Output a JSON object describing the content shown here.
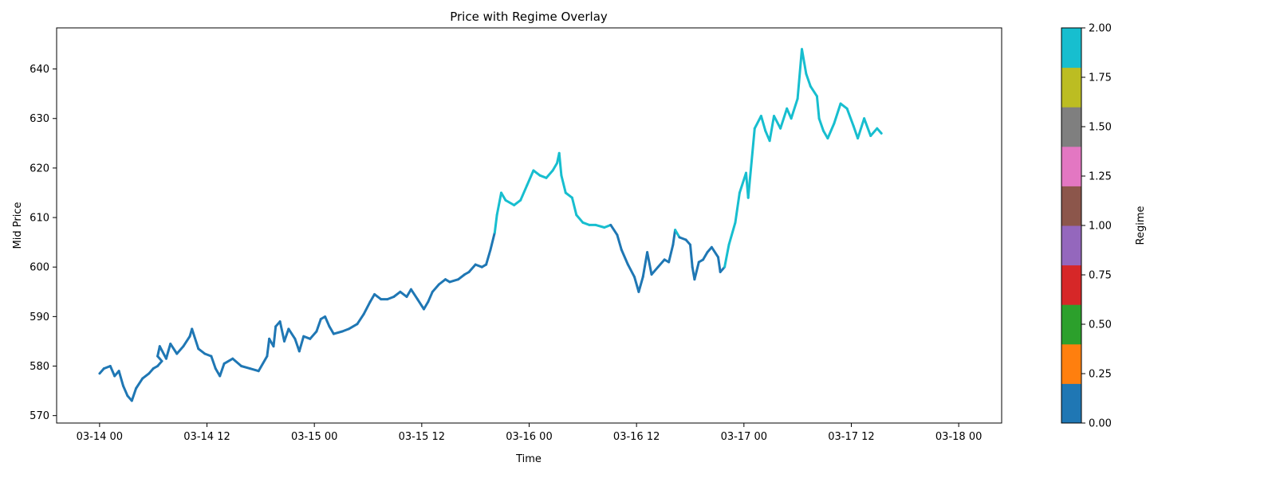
{
  "chart_data": {
    "type": "line",
    "title": "Price with Regime Overlay",
    "xlabel": "Time",
    "ylabel": "Mid Price",
    "ylim": [
      568.5,
      648.3
    ],
    "xlim_days": [
      -0.2,
      4.2
    ],
    "yticks": [
      570,
      580,
      590,
      600,
      610,
      620,
      630,
      640
    ],
    "xticks": [
      {
        "value": 0.0,
        "label": "03-14 00"
      },
      {
        "value": 0.5,
        "label": "03-14 12"
      },
      {
        "value": 1.0,
        "label": "03-15 00"
      },
      {
        "value": 1.5,
        "label": "03-15 12"
      },
      {
        "value": 2.0,
        "label": "03-16 00"
      },
      {
        "value": 2.5,
        "label": "03-16 12"
      },
      {
        "value": 3.0,
        "label": "03-17 00"
      },
      {
        "value": 3.5,
        "label": "03-17 12"
      },
      {
        "value": 4.0,
        "label": "03-18 00"
      }
    ],
    "series": [
      {
        "name": "Mid Price",
        "x_unit": "days since 03-14 00",
        "points": [
          [
            0.0,
            578.5,
            0
          ],
          [
            0.02,
            579.5,
            0
          ],
          [
            0.05,
            580.0,
            0
          ],
          [
            0.07,
            578.0,
            0
          ],
          [
            0.09,
            579.0,
            0
          ],
          [
            0.11,
            576.0,
            0
          ],
          [
            0.13,
            574.0,
            0
          ],
          [
            0.15,
            573.0,
            0
          ],
          [
            0.17,
            575.5,
            0
          ],
          [
            0.2,
            577.5,
            0
          ],
          [
            0.23,
            578.5,
            0
          ],
          [
            0.25,
            579.5,
            0
          ],
          [
            0.27,
            580.0,
            0
          ],
          [
            0.29,
            581.0,
            0
          ],
          [
            0.27,
            582.0,
            0
          ],
          [
            0.28,
            584.0,
            0
          ],
          [
            0.31,
            581.5,
            0
          ],
          [
            0.32,
            583.0,
            0
          ],
          [
            0.33,
            584.5,
            0
          ],
          [
            0.36,
            582.5,
            0
          ],
          [
            0.39,
            584.0,
            0
          ],
          [
            0.42,
            586.0,
            0
          ],
          [
            0.43,
            587.5,
            0
          ],
          [
            0.46,
            583.5,
            0
          ],
          [
            0.49,
            582.5,
            0
          ],
          [
            0.52,
            582.0,
            0
          ],
          [
            0.54,
            579.5,
            0
          ],
          [
            0.56,
            578.0,
            0
          ],
          [
            0.58,
            580.5,
            0
          ],
          [
            0.62,
            581.5,
            0
          ],
          [
            0.66,
            580.0,
            0
          ],
          [
            0.7,
            579.5,
            0
          ],
          [
            0.74,
            579.0,
            0
          ],
          [
            0.78,
            582.0,
            0
          ],
          [
            0.79,
            585.5,
            0
          ],
          [
            0.81,
            584.0,
            0
          ],
          [
            0.82,
            588.0,
            0
          ],
          [
            0.84,
            589.0,
            0
          ],
          [
            0.86,
            585.0,
            0
          ],
          [
            0.88,
            587.5,
            0
          ],
          [
            0.91,
            585.5,
            0
          ],
          [
            0.93,
            583.0,
            0
          ],
          [
            0.95,
            586.0,
            0
          ],
          [
            0.98,
            585.5,
            0
          ],
          [
            1.01,
            587.0,
            0
          ],
          [
            1.03,
            589.5,
            0
          ],
          [
            1.05,
            590.0,
            0
          ],
          [
            1.07,
            588.0,
            0
          ],
          [
            1.09,
            586.5,
            0
          ],
          [
            1.13,
            587.0,
            0
          ],
          [
            1.16,
            587.5,
            0
          ],
          [
            1.2,
            588.5,
            0
          ],
          [
            1.23,
            590.5,
            0
          ],
          [
            1.26,
            593.0,
            0
          ],
          [
            1.28,
            594.5,
            0
          ],
          [
            1.31,
            593.5,
            0
          ],
          [
            1.34,
            593.5,
            0
          ],
          [
            1.37,
            594.0,
            0
          ],
          [
            1.4,
            595.0,
            0
          ],
          [
            1.43,
            594.0,
            0
          ],
          [
            1.45,
            595.5,
            0
          ],
          [
            1.48,
            593.5,
            0
          ],
          [
            1.51,
            591.5,
            0
          ],
          [
            1.53,
            593.0,
            0
          ],
          [
            1.55,
            595.0,
            0
          ],
          [
            1.58,
            596.5,
            0
          ],
          [
            1.61,
            597.5,
            0
          ],
          [
            1.63,
            597.0,
            0
          ],
          [
            1.67,
            597.5,
            0
          ],
          [
            1.7,
            598.5,
            0
          ],
          [
            1.72,
            599.0,
            0
          ],
          [
            1.75,
            600.5,
            0
          ],
          [
            1.78,
            600.0,
            0
          ],
          [
            1.8,
            600.5,
            0
          ],
          [
            1.82,
            603.5,
            0
          ],
          [
            1.84,
            607.0,
            2
          ],
          [
            1.85,
            610.5,
            2
          ],
          [
            1.87,
            615.0,
            2
          ],
          [
            1.89,
            613.5,
            2
          ],
          [
            1.93,
            612.5,
            2
          ],
          [
            1.96,
            613.5,
            2
          ],
          [
            1.99,
            616.5,
            2
          ],
          [
            2.02,
            619.5,
            2
          ],
          [
            2.05,
            618.5,
            2
          ],
          [
            2.08,
            618.0,
            2
          ],
          [
            2.11,
            619.5,
            2
          ],
          [
            2.13,
            621.0,
            2
          ],
          [
            2.14,
            623.0,
            2
          ],
          [
            2.15,
            618.5,
            2
          ],
          [
            2.17,
            615.0,
            2
          ],
          [
            2.2,
            614.0,
            2
          ],
          [
            2.22,
            610.5,
            2
          ],
          [
            2.25,
            609.0,
            2
          ],
          [
            2.28,
            608.5,
            2
          ],
          [
            2.31,
            608.5,
            2
          ],
          [
            2.35,
            608.0,
            2
          ],
          [
            2.38,
            608.5,
            0
          ],
          [
            2.41,
            606.5,
            0
          ],
          [
            2.43,
            603.5,
            0
          ],
          [
            2.46,
            600.5,
            0
          ],
          [
            2.49,
            598.0,
            0
          ],
          [
            2.51,
            595.0,
            0
          ],
          [
            2.53,
            598.0,
            0
          ],
          [
            2.55,
            603.0,
            0
          ],
          [
            2.57,
            598.5,
            0
          ],
          [
            2.6,
            600.0,
            0
          ],
          [
            2.63,
            601.5,
            0
          ],
          [
            2.65,
            601.0,
            0
          ],
          [
            2.67,
            604.5,
            0
          ],
          [
            2.68,
            607.5,
            2
          ],
          [
            2.7,
            606.0,
            0
          ],
          [
            2.73,
            605.5,
            0
          ],
          [
            2.75,
            604.5,
            0
          ],
          [
            2.76,
            600.0,
            0
          ],
          [
            2.77,
            597.5,
            0
          ],
          [
            2.79,
            601.0,
            0
          ],
          [
            2.81,
            601.5,
            0
          ],
          [
            2.83,
            603.0,
            0
          ],
          [
            2.85,
            604.0,
            0
          ],
          [
            2.88,
            602.0,
            0
          ],
          [
            2.89,
            599.0,
            0
          ],
          [
            2.91,
            600.0,
            2
          ],
          [
            2.93,
            604.5,
            2
          ],
          [
            2.96,
            609.0,
            2
          ],
          [
            2.98,
            615.0,
            2
          ],
          [
            3.01,
            619.0,
            2
          ],
          [
            3.02,
            614.0,
            2
          ],
          [
            3.05,
            628.0,
            2
          ],
          [
            3.08,
            630.5,
            2
          ],
          [
            3.1,
            627.5,
            2
          ],
          [
            3.12,
            625.5,
            2
          ],
          [
            3.14,
            630.5,
            2
          ],
          [
            3.17,
            628.0,
            2
          ],
          [
            3.2,
            632.0,
            2
          ],
          [
            3.22,
            630.0,
            2
          ],
          [
            3.25,
            634.0,
            2
          ],
          [
            3.27,
            644.0,
            2
          ],
          [
            3.29,
            639.0,
            2
          ],
          [
            3.31,
            636.5,
            2
          ],
          [
            3.34,
            634.5,
            2
          ],
          [
            3.35,
            630.0,
            2
          ],
          [
            3.37,
            627.5,
            2
          ],
          [
            3.39,
            626.0,
            2
          ],
          [
            3.42,
            629.0,
            2
          ],
          [
            3.45,
            633.0,
            2
          ],
          [
            3.48,
            632.0,
            2
          ],
          [
            3.51,
            628.5,
            2
          ],
          [
            3.53,
            626.0,
            2
          ],
          [
            3.56,
            630.0,
            2
          ],
          [
            3.59,
            626.5,
            2
          ],
          [
            3.62,
            628.0,
            2
          ],
          [
            3.64,
            627.0,
            2
          ]
        ]
      }
    ],
    "colorbar": {
      "label": "Regime",
      "range": [
        0.0,
        2.0
      ],
      "ticks": [
        "0.00",
        "0.25",
        "0.50",
        "0.75",
        "1.00",
        "1.25",
        "1.50",
        "1.75",
        "2.00"
      ],
      "colors": [
        "#1f77b4",
        "#ff7f0e",
        "#2ca02c",
        "#d62728",
        "#9467bd",
        "#8c564b",
        "#e377c2",
        "#7f7f7f",
        "#bcbd22",
        "#17becf"
      ]
    }
  }
}
